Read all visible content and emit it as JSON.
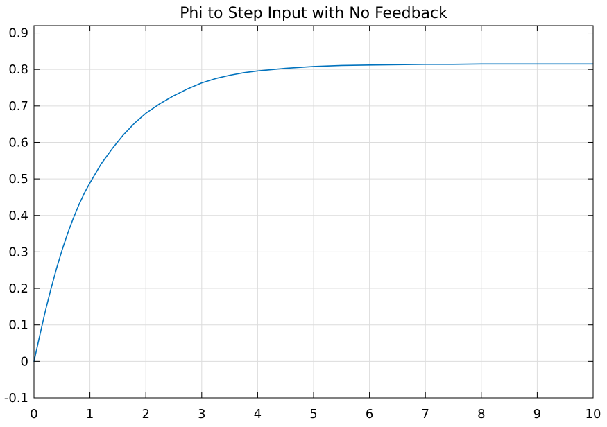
{
  "chart_data": {
    "type": "line",
    "title": "Phi to Step Input with No Feedback",
    "xlabel": "",
    "ylabel": "",
    "xlim": [
      0,
      10
    ],
    "ylim": [
      -0.1,
      0.92
    ],
    "grid": true,
    "x_ticks": [
      "0",
      "1",
      "2",
      "3",
      "4",
      "5",
      "6",
      "7",
      "8",
      "9",
      "10"
    ],
    "y_ticks": [
      "-0.1",
      "0",
      "0.1",
      "0.2",
      "0.3",
      "0.4",
      "0.5",
      "0.6",
      "0.7",
      "0.8",
      "0.9"
    ],
    "series": [
      {
        "color": "#0072BD",
        "x": [
          0,
          0.1,
          0.2,
          0.3,
          0.4,
          0.5,
          0.6,
          0.7,
          0.8,
          0.9,
          1,
          1.2,
          1.4,
          1.6,
          1.8,
          2,
          2.25,
          2.5,
          2.75,
          3,
          3.25,
          3.5,
          3.75,
          4,
          4.5,
          5,
          5.5,
          6,
          6.5,
          7,
          7.5,
          8,
          8.5,
          9,
          9.5,
          10
        ],
        "y": [
          0,
          0.069,
          0.136,
          0.197,
          0.253,
          0.304,
          0.35,
          0.391,
          0.428,
          0.461,
          0.489,
          0.541,
          0.583,
          0.621,
          0.653,
          0.68,
          0.706,
          0.728,
          0.747,
          0.763,
          0.775,
          0.784,
          0.791,
          0.796,
          0.803,
          0.808,
          0.811,
          0.812,
          0.813,
          0.814,
          0.814,
          0.815,
          0.815,
          0.815,
          0.815,
          0.815
        ]
      }
    ]
  },
  "colors": {
    "background": "#ffffff",
    "axes": "#000000",
    "grid": "#dcdcdc",
    "series": "#0072BD"
  }
}
